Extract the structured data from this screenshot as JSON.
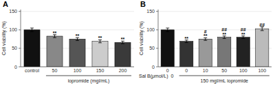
{
  "chart_data": [
    {
      "type": "bar",
      "title": "A",
      "categories": [
        "control",
        "50",
        "100",
        "150",
        "200"
      ],
      "values": [
        100,
        83,
        75,
        69,
        66
      ],
      "errors": [
        5,
        4,
        4,
        4,
        3.5
      ],
      "colors": [
        "#111111",
        "#888888",
        "#555555",
        "#cccccc",
        "#3a3a3a"
      ],
      "xlabel": "iopromide (mgI/mL)",
      "ylabel": "Cell viability (%)",
      "ylim": [
        0,
        155
      ],
      "yticks": [
        0,
        50,
        100,
        150
      ],
      "annotations": [
        null,
        [
          "**"
        ],
        [
          "**"
        ],
        [
          "**"
        ],
        [
          "**"
        ]
      ]
    },
    {
      "type": "bar",
      "title": "B",
      "categories": [
        "0",
        "0",
        "10",
        "50",
        "100",
        "100"
      ],
      "values": [
        100,
        69,
        75,
        80,
        80,
        103
      ],
      "errors": [
        5,
        3.5,
        3.5,
        3.5,
        3.5,
        5
      ],
      "colors": [
        "#111111",
        "#333333",
        "#999999",
        "#777777",
        "#222222",
        "#bbbbbb"
      ],
      "xlabel_prefix": "Sal B(μmol/L)  0",
      "xlabel": "150 mgI/mL iopromide",
      "ylabel": "Cell viability (%)",
      "ylim": [
        0,
        155
      ],
      "yticks": [
        0,
        50,
        100,
        150
      ],
      "annotations": [
        null,
        [
          "**"
        ],
        [
          "#",
          "**"
        ],
        [
          "##",
          "**"
        ],
        [
          "##",
          "**"
        ],
        [
          "##"
        ]
      ]
    }
  ]
}
